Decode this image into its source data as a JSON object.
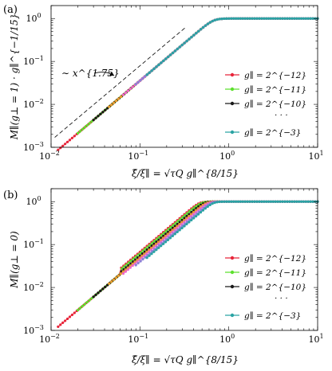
{
  "chart_data": [
    {
      "type": "line",
      "panel_tag": "(a)",
      "scale": "log-log",
      "xlim": [
        0.01,
        10
      ],
      "ylim": [
        0.001,
        2
      ],
      "x_ticks": [
        "10^{-2}",
        "10^{-1}",
        "10^{0}",
        "10^{1}"
      ],
      "y_ticks": [
        "10^{-3}",
        "10^{-2}",
        "10^{-1}",
        "10^{0}"
      ],
      "xlabel": "ξ̂/ξ∥ = √τQ g∥^{8/15}",
      "ylabel": "M∥(g⊥ = 1) · g∥^{−1/15}",
      "annotation": "∼ x^{1.75}",
      "guide_line": {
        "exponent": 1.75,
        "x_range": [
          0.011,
          0.32
        ],
        "y_at_x_range": [
          0.0017,
          0.6
        ]
      },
      "model": {
        "type": "scaling",
        "exponent": 1.75,
        "prefactor": 2.0,
        "saturation": 1.0
      },
      "series": [
        {
          "name": "g∥ = 2^{−12}",
          "color": "#e8253a",
          "x_range": [
            0.012,
            10
          ],
          "offset": 1.0
        },
        {
          "name": "g∥ = 2^{−11}",
          "color": "#5ce02d",
          "x_range": [
            0.02,
            10
          ],
          "offset": 1.0
        },
        {
          "name": "g∥ = 2^{−10}",
          "color": "#1a1a1a",
          "x_range": [
            0.03,
            10
          ],
          "offset": 1.0
        },
        {
          "name": "",
          "color": "#e79a2e",
          "x_range": [
            0.045,
            10
          ],
          "offset": 1.0
        },
        {
          "name": "",
          "color": "#ee66c8",
          "x_range": [
            0.065,
            10
          ],
          "offset": 1.0
        },
        {
          "name": "",
          "color": "#8c7fd6",
          "x_range": [
            0.09,
            10
          ],
          "offset": 1.0
        },
        {
          "name": "g∥ = 2^{−3}",
          "color": "#2aa3a3",
          "x_range": [
            0.12,
            10
          ],
          "offset": 1.0
        }
      ],
      "legend": {
        "placement": "right",
        "ellipsis": "· · ·"
      }
    },
    {
      "type": "line",
      "panel_tag": "(b)",
      "scale": "log-log",
      "xlim": [
        0.01,
        10
      ],
      "ylim": [
        0.001,
        2
      ],
      "x_ticks": [
        "10^{-2}",
        "10^{-1}",
        "10^{0}",
        "10^{1}"
      ],
      "y_ticks": [
        "10^{-3}",
        "10^{-2}",
        "10^{-1}",
        "10^{0}"
      ],
      "xlabel": "ξ̂/ξ∥ = √τQ g∥^{8/15}",
      "ylabel": "M∥(g⊥ = 0)",
      "model": {
        "type": "scaling",
        "exponent": 1.75,
        "prefactor": 2.8,
        "saturation": 1.0
      },
      "series": [
        {
          "name": "g∥ = 2^{−12}",
          "color": "#e8253a",
          "x_range": [
            0.012,
            10
          ],
          "split": 1.35
        },
        {
          "name": "g∥ = 2^{−11}",
          "color": "#5ce02d",
          "x_range": [
            0.02,
            10
          ],
          "split": 1.25
        },
        {
          "name": "g∥ = 2^{−10}",
          "color": "#1a1a1a",
          "x_range": [
            0.03,
            10
          ],
          "split": 1.1
        },
        {
          "name": "",
          "color": "#e79a2e",
          "x_range": [
            0.045,
            10
          ],
          "split": 1.0
        },
        {
          "name": "",
          "color": "#ee66c8",
          "x_range": [
            0.065,
            10
          ],
          "split": 0.9
        },
        {
          "name": "",
          "color": "#8c7fd6",
          "x_range": [
            0.09,
            10
          ],
          "split": 0.8
        },
        {
          "name": "g∥ = 2^{−3}",
          "color": "#2aa3a3",
          "x_range": [
            0.12,
            10
          ],
          "split": 0.72
        }
      ],
      "legend": {
        "placement": "right",
        "ellipsis": "· · ·"
      }
    }
  ]
}
